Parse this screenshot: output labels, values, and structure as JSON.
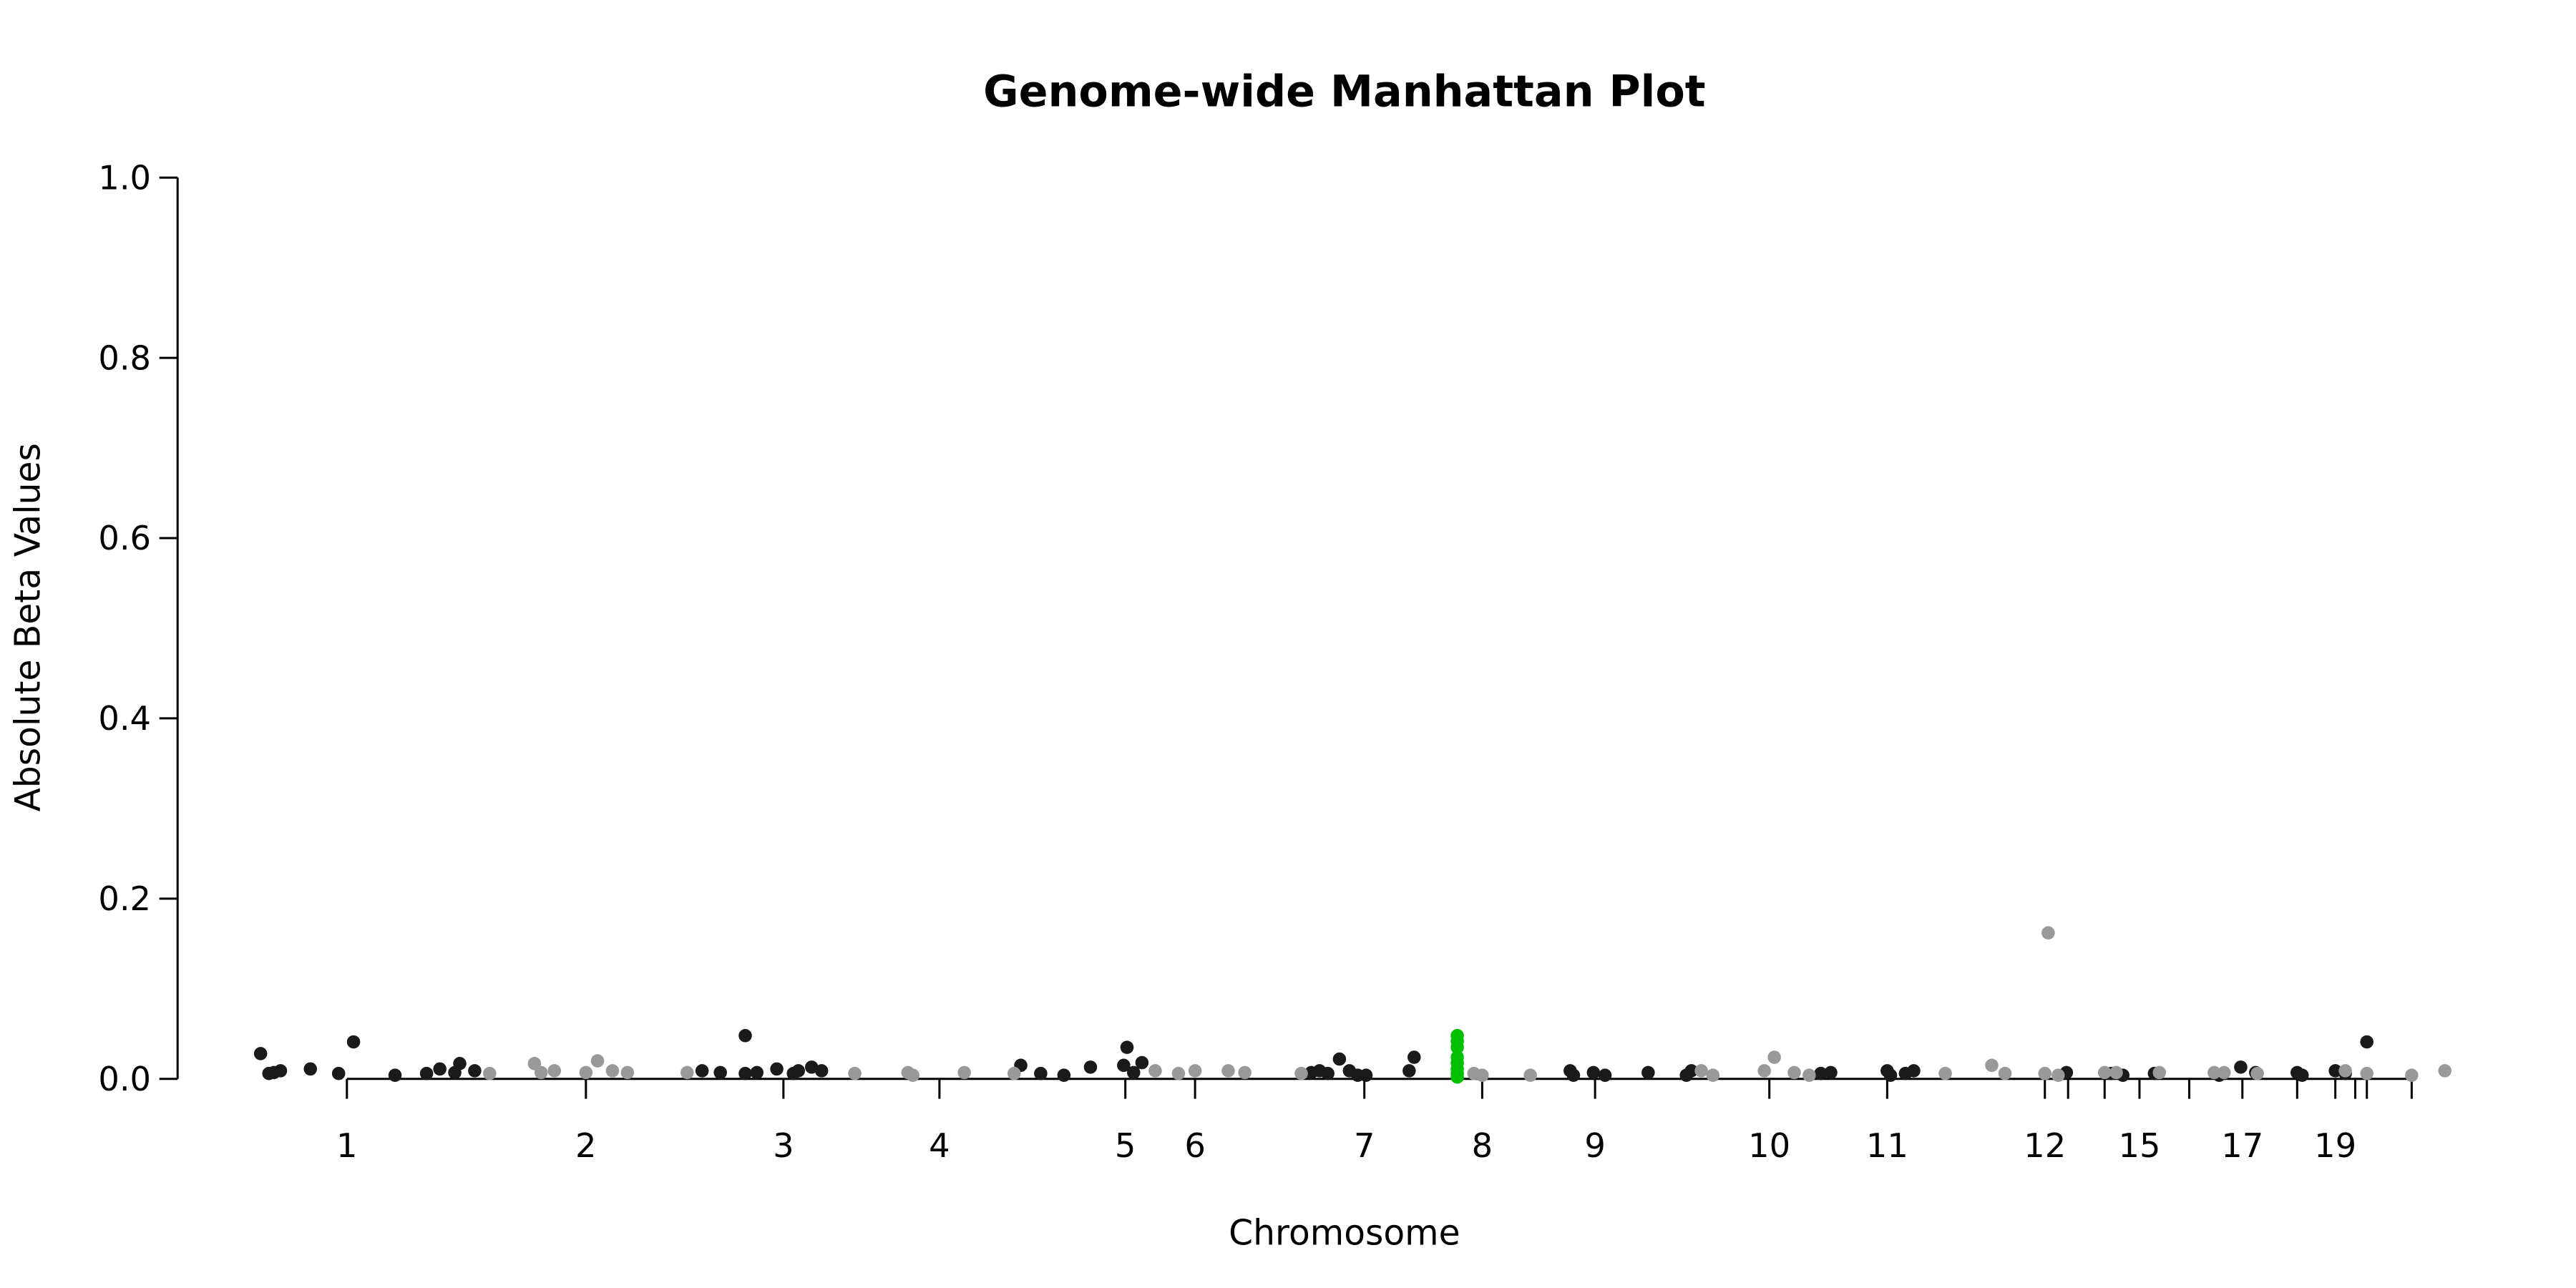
{
  "chart_data": {
    "type": "scatter",
    "title": "Genome-wide Manhattan Plot",
    "x_label": "Chromosome",
    "y_label": "Absolute Beta Values",
    "xlim": [
      130,
      1500
    ],
    "ylim": [
      0,
      1
    ],
    "yticks": [
      {
        "value": 0,
        "label": "0.0"
      },
      {
        "value": 0.2,
        "label": "0.2"
      },
      {
        "value": 0.4,
        "label": "0.4"
      },
      {
        "value": 0.6,
        "label": "0.6"
      },
      {
        "value": 0.8,
        "label": "0.8"
      },
      {
        "value": 1,
        "label": "1.0"
      }
    ],
    "xticks": [
      {
        "value": 209,
        "label": "1"
      },
      {
        "value": 353,
        "label": "2"
      },
      {
        "value": 472,
        "label": "3"
      },
      {
        "value": 566,
        "label": "4"
      },
      {
        "value": 678,
        "label": "5"
      },
      {
        "value": 720,
        "label": "6"
      },
      {
        "value": 822,
        "label": "7"
      },
      {
        "value": 893,
        "label": "8"
      },
      {
        "value": 961,
        "label": "9"
      },
      {
        "value": 1066,
        "label": "10"
      },
      {
        "value": 1137,
        "label": "11"
      },
      {
        "value": 1232,
        "label": "12"
      },
      {
        "value": 1246,
        "label": null
      },
      {
        "value": 1268,
        "label": null
      },
      {
        "value": 1289,
        "label": "15"
      },
      {
        "value": 1319,
        "label": null
      },
      {
        "value": 1351,
        "label": "17"
      },
      {
        "value": 1384,
        "label": null
      },
      {
        "value": 1407,
        "label": "19"
      },
      {
        "value": 1419,
        "label": null
      },
      {
        "value": 1426,
        "label": null
      },
      {
        "value": 1453,
        "label": null
      }
    ],
    "series": [
      {
        "color": "#1a1a1a",
        "x": [
          157,
          162,
          165,
          169,
          187,
          204,
          213,
          238,
          257,
          265,
          274,
          277,
          286,
          423,
          434,
          449,
          449,
          456,
          468,
          478,
          481,
          489,
          495,
          615,
          627,
          641,
          657,
          677,
          679,
          683,
          688,
          790,
          795,
          800,
          807,
          813,
          818,
          823,
          849,
          852,
          946,
          948,
          960,
          967,
          993,
          1016,
          1019,
          1097,
          1103,
          1137,
          1139,
          1148,
          1153,
          1245,
          1272,
          1279,
          1298,
          1337,
          1350,
          1359,
          1384,
          1387,
          1407,
          1426,
          1413
        ],
        "values": [
          0.028,
          0.006,
          0.007,
          0.009,
          0.011,
          0.006,
          0.041,
          0.004,
          0.006,
          0.011,
          0.007,
          0.017,
          0.009,
          0.009,
          0.007,
          0.048,
          0.006,
          0.007,
          0.011,
          0.006,
          0.009,
          0.013,
          0.009,
          0.015,
          0.006,
          0.004,
          0.013,
          0.015,
          0.035,
          0.007,
          0.018,
          0.007,
          0.009,
          0.006,
          0.022,
          0.009,
          0.004,
          0.004,
          0.009,
          0.024,
          0.009,
          0.004,
          0.007,
          0.004,
          0.007,
          0.004,
          0.009,
          0.006,
          0.007,
          0.009,
          0.004,
          0.006,
          0.009,
          0.007,
          0.006,
          0.004,
          0.006,
          0.004,
          0.013,
          0.007,
          0.007,
          0.004,
          0.009,
          0.041,
          0.006
        ]
      },
      {
        "color": "#999999",
        "x": [
          295,
          322,
          326,
          334,
          353,
          360,
          369,
          378,
          414,
          515,
          547,
          550,
          581,
          611,
          696,
          710,
          720,
          740,
          750,
          784,
          888,
          893,
          922,
          1025,
          1032,
          1063,
          1069,
          1081,
          1090,
          1172,
          1200,
          1208,
          1232,
          1234,
          1240,
          1268,
          1275,
          1301,
          1334,
          1340,
          1360,
          1413,
          1426,
          1453,
          1473
        ],
        "values": [
          0.006,
          0.017,
          0.007,
          0.009,
          0.007,
          0.02,
          0.009,
          0.007,
          0.007,
          0.006,
          0.007,
          0.004,
          0.007,
          0.006,
          0.009,
          0.006,
          0.009,
          0.009,
          0.007,
          0.006,
          0.006,
          0.004,
          0.004,
          0.009,
          0.004,
          0.009,
          0.024,
          0.007,
          0.004,
          0.006,
          0.015,
          0.006,
          0.006,
          0.162,
          0.004,
          0.007,
          0.007,
          0.007,
          0.007,
          0.007,
          0.006,
          0.009,
          0.006,
          0.004,
          0.009
        ]
      },
      {
        "color": "#00c000",
        "x": [
          878,
          878,
          878,
          878,
          878,
          878,
          878,
          878
        ],
        "values": [
          0.048,
          0.042,
          0.035,
          0.024,
          0.018,
          0.011,
          0.006,
          0.002
        ]
      }
    ]
  }
}
